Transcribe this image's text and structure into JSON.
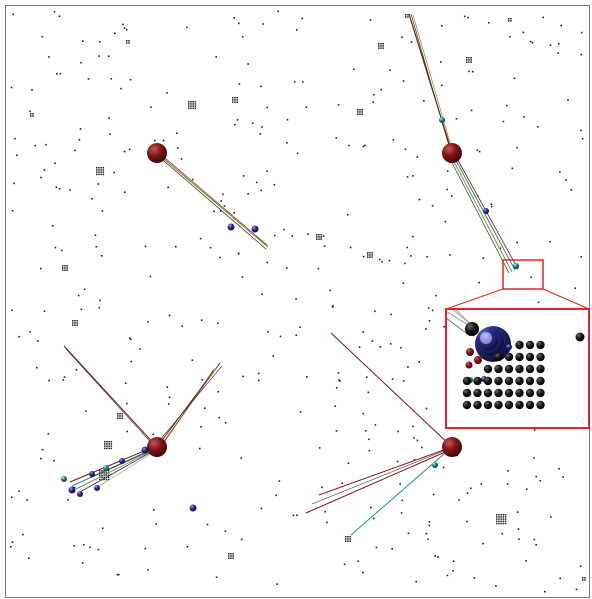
{
  "figure": {
    "background": "#ffffff",
    "border_color": "#777777",
    "hub_color": "#7f1518",
    "sphere_blue": "#2b2e8c",
    "sphere_teal": "#1f8a8f",
    "grid_dot_color": "#222222",
    "zoom_box_color": "#e32626"
  },
  "panels": [
    {
      "id": "top-left",
      "hub": true,
      "bundles": [
        {
          "direction_deg": 35,
          "length": 0.55,
          "colors": [
            "#8a8f3a",
            "#333333",
            "#7f1518"
          ]
        }
      ],
      "spheres": [
        {
          "color": "blue",
          "size": "small"
        },
        {
          "color": "blue",
          "size": "small"
        }
      ]
    },
    {
      "id": "top-right",
      "hub": true,
      "bundles": [
        {
          "direction_deg": -100,
          "length": 0.6,
          "colors": [
            "#7f1518",
            "#333333",
            "#8a8f3a"
          ]
        },
        {
          "direction_deg": 65,
          "length": 0.55,
          "colors": [
            "#1f8a8f",
            "#8a8f3a",
            "#7f1518",
            "#333333"
          ]
        }
      ],
      "spheres": [
        {
          "color": "teal",
          "size": "small"
        },
        {
          "color": "blue",
          "size": "small"
        },
        {
          "color": "teal",
          "size": "small"
        }
      ],
      "zoom_inset": true
    },
    {
      "id": "bottom-left",
      "hub": true,
      "bundles": [
        {
          "direction_deg": -140,
          "length": 0.55,
          "colors": [
            "#7f1518",
            "#333333"
          ]
        },
        {
          "direction_deg": -55,
          "length": 0.45,
          "colors": [
            "#7f1518",
            "#8a8f3a",
            "#333333"
          ]
        },
        {
          "direction_deg": 160,
          "length": 0.45,
          "colors": [
            "#1f8a8f",
            "#8a8f3a",
            "#7f1518",
            "#2b2e8c"
          ]
        }
      ],
      "spheres": [
        {
          "color": "blue",
          "size": "small"
        },
        {
          "color": "teal",
          "size": "small"
        },
        {
          "color": "blue",
          "size": "small"
        }
      ]
    },
    {
      "id": "bottom-right",
      "hub": true,
      "bundles": [
        {
          "direction_deg": -140,
          "length": 0.55,
          "colors": [
            "#7f1518"
          ]
        },
        {
          "direction_deg": 165,
          "length": 0.5,
          "colors": [
            "#7f1518",
            "#333333"
          ]
        },
        {
          "direction_deg": 125,
          "length": 0.45,
          "colors": [
            "#1f8a8f"
          ]
        }
      ],
      "spheres": [
        {
          "color": "teal",
          "size": "small"
        }
      ]
    }
  ]
}
